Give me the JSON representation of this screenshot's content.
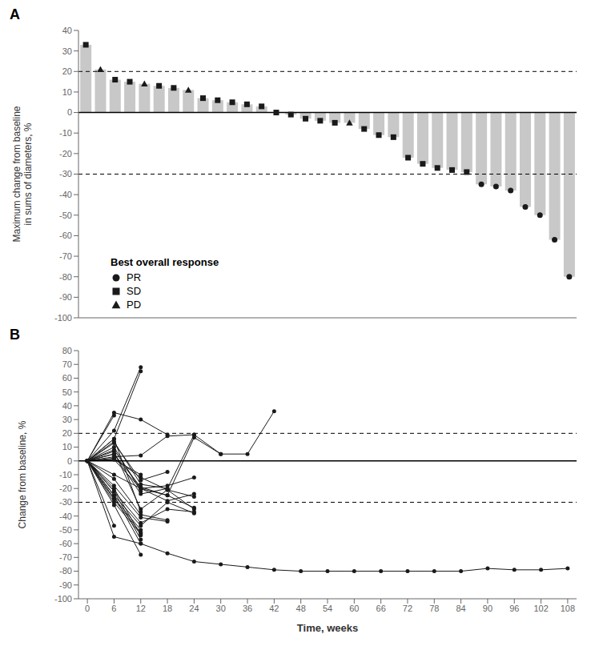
{
  "chart_data": [
    {
      "type": "bar",
      "title": "A",
      "ylabel": "Maximum change from baseline\nin sums of diameters, %",
      "categories": [
        null,
        null,
        null,
        null,
        null,
        null,
        null,
        null,
        null,
        null,
        null,
        null,
        null,
        null,
        null,
        null,
        null,
        null,
        null,
        null,
        null,
        null,
        null,
        null,
        null,
        null,
        null,
        null,
        null,
        null,
        null,
        null,
        null,
        null
      ],
      "series": [
        {
          "type": "bar",
          "color": "#c8c8c8",
          "values": [
            33,
            21,
            16,
            15,
            14,
            13,
            12,
            11,
            7,
            6,
            5,
            4,
            3,
            0,
            -1,
            -3,
            -4,
            -5,
            -5,
            -8,
            -11,
            -12,
            -22,
            -25,
            -27,
            -28,
            -29,
            -35,
            -36,
            -38,
            -46,
            -50,
            -62,
            -80
          ]
        },
        {
          "name": "PR",
          "type": "scatter",
          "marker": "circle",
          "color": "#1a1a1a",
          "values": [
            null,
            null,
            null,
            null,
            null,
            null,
            null,
            null,
            null,
            null,
            null,
            null,
            null,
            null,
            null,
            null,
            null,
            null,
            null,
            null,
            null,
            null,
            null,
            null,
            null,
            null,
            null,
            -35,
            -36,
            -38,
            -46,
            -50,
            -62,
            -80
          ]
        },
        {
          "name": "SD",
          "type": "scatter",
          "marker": "square",
          "color": "#1a1a1a",
          "values": [
            33,
            null,
            16,
            15,
            null,
            13,
            12,
            null,
            7,
            6,
            5,
            4,
            3,
            0,
            -1,
            -3,
            -4,
            -5,
            null,
            -8,
            -11,
            -12,
            -22,
            -25,
            -27,
            -28,
            -29,
            null,
            null,
            null,
            null,
            null,
            null,
            null
          ]
        },
        {
          "name": "PD",
          "type": "scatter",
          "marker": "triangle",
          "color": "#1a1a1a",
          "values": [
            null,
            21,
            null,
            null,
            14,
            null,
            null,
            11,
            null,
            null,
            null,
            null,
            null,
            null,
            null,
            null,
            null,
            null,
            -5,
            null,
            null,
            null,
            null,
            null,
            null,
            null,
            null,
            null,
            null,
            null,
            null,
            null,
            null,
            null
          ]
        }
      ],
      "ylim": [
        -100,
        40
      ],
      "yticks": [
        -100,
        -90,
        -80,
        -70,
        -60,
        -50,
        -40,
        -30,
        -20,
        -10,
        0,
        10,
        20,
        30,
        40
      ],
      "tick_labels": "y",
      "grid": false,
      "legend": "lower left",
      "legend_title": "Best overall response",
      "reference_lines": [
        {
          "value": 0,
          "line_style": "solid"
        },
        {
          "value": 20,
          "line_style": "dashed"
        },
        {
          "value": -30,
          "line_style": "dashed"
        }
      ]
    },
    {
      "type": "line",
      "title": "B",
      "xlabel": "Time, weeks",
      "ylabel": "Change from baseline, %",
      "xlim": [
        -2,
        110
      ],
      "xticks": [
        0,
        6,
        12,
        18,
        24,
        30,
        36,
        42,
        48,
        54,
        60,
        66,
        72,
        78,
        84,
        90,
        96,
        102,
        108
      ],
      "ylim": [
        -100,
        80
      ],
      "yticks": [
        -100,
        -90,
        -80,
        -70,
        -60,
        -50,
        -40,
        -30,
        -20,
        -10,
        0,
        10,
        20,
        30,
        40,
        50,
        60,
        70,
        80
      ],
      "color": "#1a1a1a",
      "marker": "circle",
      "grid": false,
      "reference_lines": [
        {
          "value": 0,
          "line_style": "solid"
        },
        {
          "value": 20,
          "line_style": "dashed"
        },
        {
          "value": -30,
          "line_style": "dashed"
        }
      ],
      "series": [
        {
          "x": [
            0,
            6,
            12,
            18,
            24,
            30,
            36,
            42,
            48,
            54,
            60,
            66,
            72,
            78,
            84,
            90,
            96,
            102,
            108
          ],
          "values": [
            0,
            -55,
            -60,
            -67,
            -73,
            -75,
            -77,
            -79,
            -80,
            -80,
            -80,
            -80,
            -80,
            -80,
            -80,
            -78,
            -79,
            -79,
            -78
          ]
        },
        {
          "x": [
            0,
            6
          ],
          "values": [
            0,
            33
          ]
        },
        {
          "x": [
            0,
            6,
            12
          ],
          "values": [
            0,
            22,
            68
          ]
        },
        {
          "x": [
            0,
            6,
            12
          ],
          "values": [
            0,
            16,
            65
          ]
        },
        {
          "x": [
            0,
            6,
            12,
            18
          ],
          "values": [
            0,
            35,
            30,
            19
          ]
        },
        {
          "x": [
            0,
            6,
            12,
            18,
            24
          ],
          "values": [
            0,
            14,
            -17,
            -20,
            19
          ]
        },
        {
          "x": [
            0,
            6,
            12,
            18,
            24,
            30
          ],
          "values": [
            0,
            5,
            -19,
            -25,
            17,
            5
          ]
        },
        {
          "x": [
            0,
            6,
            12,
            18,
            24,
            30,
            36,
            42
          ],
          "values": [
            0,
            3,
            4,
            18,
            19,
            5,
            5,
            36
          ]
        },
        {
          "x": [
            0,
            6,
            12,
            18,
            24
          ],
          "values": [
            0,
            7,
            -35,
            -21,
            -35
          ]
        },
        {
          "x": [
            0,
            6,
            12,
            18,
            24
          ],
          "values": [
            0,
            1,
            -20,
            -25,
            -34
          ]
        },
        {
          "x": [
            0,
            6,
            12
          ],
          "values": [
            0,
            -20,
            -54
          ]
        },
        {
          "x": [
            0,
            6,
            12
          ],
          "values": [
            0,
            -22,
            -57
          ]
        },
        {
          "x": [
            0,
            6,
            12
          ],
          "values": [
            0,
            -25,
            -60
          ]
        },
        {
          "x": [
            0,
            6,
            12
          ],
          "values": [
            0,
            16,
            -37
          ]
        },
        {
          "x": [
            0,
            6,
            12,
            18
          ],
          "values": [
            0,
            -13,
            -39,
            -43
          ]
        },
        {
          "x": [
            0,
            6,
            12,
            18
          ],
          "values": [
            0,
            -18,
            -41,
            -44
          ]
        },
        {
          "x": [
            0,
            6,
            12,
            18,
            24
          ],
          "values": [
            0,
            -22,
            -45,
            -35,
            -37
          ]
        },
        {
          "x": [
            0,
            6,
            12,
            18,
            24
          ],
          "values": [
            0,
            -25,
            -47,
            -30,
            -38
          ]
        },
        {
          "x": [
            0,
            6,
            12,
            18
          ],
          "values": [
            0,
            13,
            -14,
            -8
          ]
        },
        {
          "x": [
            0,
            6,
            12,
            18,
            24
          ],
          "values": [
            0,
            8,
            -20,
            -18,
            -12
          ]
        },
        {
          "x": [
            0,
            6,
            12
          ],
          "values": [
            0,
            -27,
            -50
          ]
        },
        {
          "x": [
            0,
            6,
            12
          ],
          "values": [
            0,
            -28,
            -52
          ]
        },
        {
          "x": [
            0,
            6,
            12
          ],
          "values": [
            0,
            -30,
            -53
          ]
        },
        {
          "x": [
            0,
            6,
            12
          ],
          "values": [
            0,
            10,
            -22
          ]
        },
        {
          "x": [
            0,
            6,
            12,
            18
          ],
          "values": [
            0,
            5,
            -24,
            -20
          ]
        },
        {
          "x": [
            0,
            6,
            12,
            18,
            24
          ],
          "values": [
            0,
            -10,
            -20,
            -29,
            -24
          ]
        },
        {
          "x": [
            0,
            6,
            12,
            18,
            24
          ],
          "values": [
            0,
            2,
            -12,
            -21,
            -26
          ]
        },
        {
          "x": [
            0,
            6,
            12
          ],
          "values": [
            0,
            -32,
            -68
          ]
        },
        {
          "x": [
            0,
            6
          ],
          "values": [
            0,
            -47
          ]
        },
        {
          "x": [
            0,
            6,
            12
          ],
          "values": [
            0,
            1,
            -10
          ]
        }
      ]
    }
  ]
}
